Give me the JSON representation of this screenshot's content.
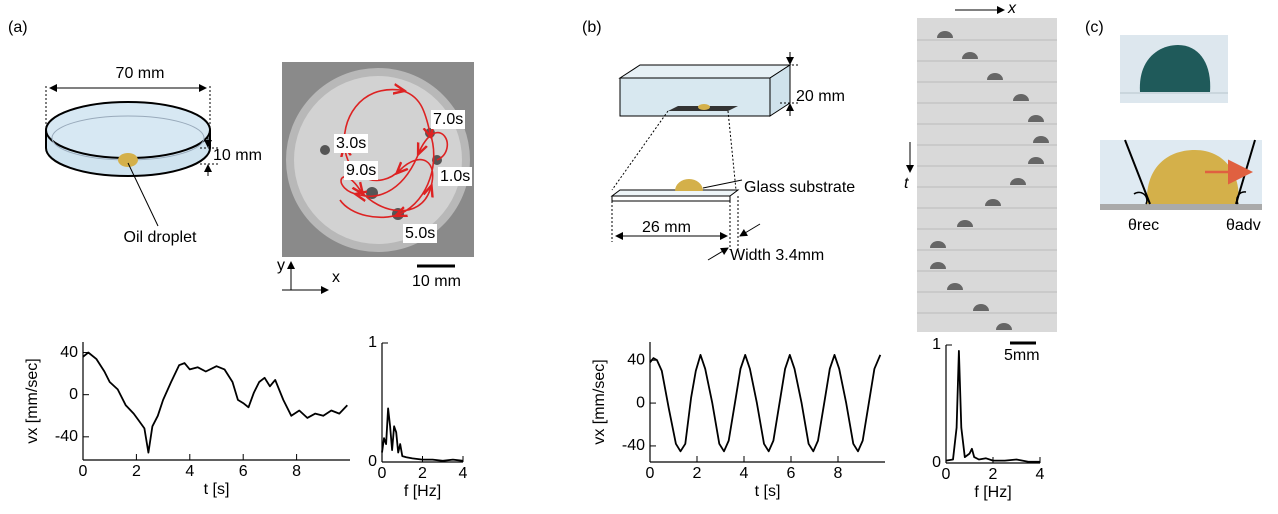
{
  "figure": {
    "labels": {
      "a": "(a)",
      "b": "(b)",
      "c": "(c)"
    },
    "dish": {
      "diameter": "70 mm",
      "height": "10 mm",
      "droplet": "Oil droplet"
    },
    "trajectory": {
      "times": [
        "3.0s",
        "7.0s",
        "9.0s",
        "1.0s",
        "5.0s"
      ],
      "axis_y": "y",
      "axis_x": "x",
      "scale": "10 mm"
    },
    "cell": {
      "height": "20 mm",
      "substrate": "Glass substrate",
      "length": "26 mm",
      "width": "Width 3.4mm"
    },
    "kymograph": {
      "x": "x",
      "t": "t",
      "scale": "5mm"
    },
    "contact": {
      "receding": "θrec",
      "advancing": "θadv"
    }
  },
  "chart_data": [
    {
      "type": "line",
      "xlabel": "t [s]",
      "ylabel": "vx [mm/sec]",
      "color": "#000000",
      "xlim": [
        0,
        10
      ],
      "xticks": [
        0,
        2,
        4,
        6,
        8
      ],
      "ylim": [
        -62,
        50
      ],
      "yticks": [
        -40,
        0,
        40
      ],
      "x": [
        0,
        0.2,
        0.5,
        0.8,
        1.0,
        1.3,
        1.6,
        1.9,
        2.1,
        2.3,
        2.45,
        2.6,
        2.8,
        3.0,
        3.3,
        3.6,
        3.8,
        4.0,
        4.3,
        4.6,
        5.0,
        5.3,
        5.6,
        5.8,
        6.0,
        6.2,
        6.4,
        6.6,
        6.8,
        7.0,
        7.2,
        7.5,
        7.8,
        8.1,
        8.4,
        8.7,
        9.0,
        9.3,
        9.6,
        9.9
      ],
      "values": [
        36,
        40,
        34,
        22,
        12,
        5,
        -10,
        -18,
        -25,
        -32,
        -55,
        -30,
        -20,
        -5,
        12,
        28,
        30,
        24,
        26,
        22,
        27,
        24,
        12,
        -5,
        -8,
        -12,
        2,
        12,
        16,
        8,
        14,
        -5,
        -20,
        -15,
        -22,
        -18,
        -20,
        -15,
        -18,
        -10
      ]
    },
    {
      "type": "line",
      "xlabel": "f [Hz]",
      "color": "#000000",
      "xlim": [
        0,
        4
      ],
      "xticks": [
        0,
        2,
        4
      ],
      "ylim": [
        0,
        1
      ],
      "yticks": [
        0,
        1
      ],
      "x": [
        0,
        0.1,
        0.2,
        0.3,
        0.4,
        0.5,
        0.6,
        0.7,
        0.8,
        0.9,
        1.0,
        1.2,
        1.5,
        2,
        2.5,
        3,
        3.5,
        4
      ],
      "values": [
        0.08,
        0.2,
        0.15,
        0.45,
        0.3,
        0.1,
        0.3,
        0.25,
        0.08,
        0.15,
        0.05,
        0.04,
        0.03,
        0.02,
        0.02,
        0.01,
        0.02,
        0.01
      ]
    },
    {
      "type": "line",
      "xlabel": "t [s]",
      "ylabel": "vx [mm/sec]",
      "color": "#000000",
      "xlim": [
        0,
        10
      ],
      "xticks": [
        0,
        2,
        4,
        6,
        8
      ],
      "ylim": [
        -55,
        57
      ],
      "yticks": [
        -40,
        0,
        40
      ],
      "x": [
        0,
        0.15,
        0.3,
        0.5,
        0.8,
        1.1,
        1.3,
        1.5,
        1.75,
        1.95,
        2.15,
        2.35,
        2.65,
        2.95,
        3.15,
        3.35,
        3.65,
        3.85,
        4.05,
        4.25,
        4.55,
        4.85,
        5.05,
        5.25,
        5.55,
        5.75,
        5.95,
        6.15,
        6.45,
        6.75,
        6.95,
        7.15,
        7.45,
        7.65,
        7.85,
        8.05,
        8.35,
        8.65,
        8.85,
        9.05,
        9.35,
        9.55,
        9.8
      ],
      "values": [
        38,
        42,
        40,
        30,
        -5,
        -38,
        -45,
        -38,
        5,
        30,
        45,
        32,
        0,
        -38,
        -45,
        -35,
        5,
        32,
        45,
        32,
        0,
        -38,
        -45,
        -35,
        5,
        32,
        45,
        32,
        0,
        -38,
        -45,
        -35,
        5,
        32,
        45,
        32,
        0,
        -38,
        -45,
        -35,
        5,
        32,
        45
      ]
    },
    {
      "type": "line",
      "xlabel": "f [Hz]",
      "color": "#000000",
      "xlim": [
        0,
        4
      ],
      "xticks": [
        0,
        2,
        4
      ],
      "ylim": [
        0,
        1
      ],
      "yticks": [
        0,
        1
      ],
      "x": [
        0,
        0.3,
        0.45,
        0.55,
        0.65,
        0.8,
        1.0,
        1.1,
        1.2,
        1.4,
        1.7,
        2,
        2.5,
        3,
        3.5,
        4
      ],
      "values": [
        0.02,
        0.03,
        0.3,
        0.95,
        0.3,
        0.05,
        0.08,
        0.12,
        0.05,
        0.03,
        0.04,
        0.02,
        0.02,
        0.03,
        0.01,
        0.01
      ]
    }
  ]
}
